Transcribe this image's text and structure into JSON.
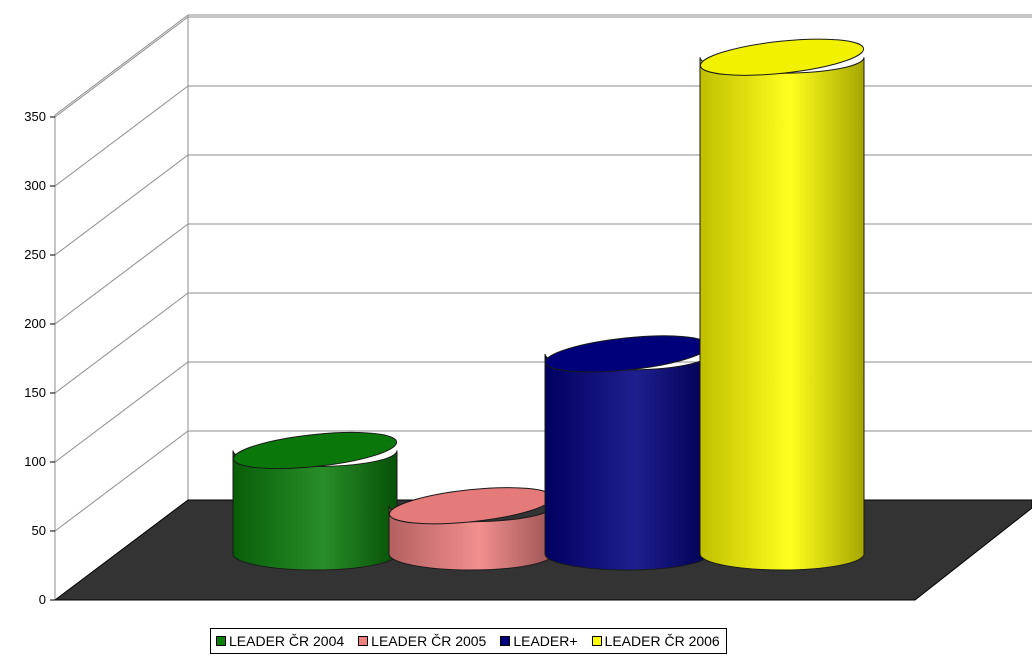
{
  "chart_data": {
    "type": "bar",
    "shape": "3d-cylinder",
    "title": "",
    "xlabel": "",
    "ylabel": "",
    "ylim": [
      0,
      350
    ],
    "y_ticks": [
      "0",
      "50",
      "100",
      "150",
      "200",
      "250",
      "300",
      "350"
    ],
    "grid": true,
    "legend_position": "bottom",
    "series": [
      {
        "name": "LEADER ČR 2004",
        "value": 75,
        "color": "#0b7d0b"
      },
      {
        "name": "LEADER ČR 2005",
        "value": 35,
        "color": "#f08080"
      },
      {
        "name": "LEADER+",
        "value": 145,
        "color": "#000080"
      },
      {
        "name": "LEADER ČR 2006",
        "value": 360,
        "color": "#ffff00"
      }
    ],
    "floor_color": "#333333"
  }
}
